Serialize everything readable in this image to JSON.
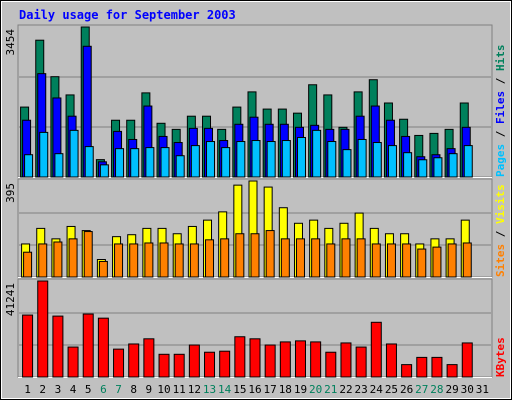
{
  "chart_data": [
    {
      "type": "bar",
      "title": "Daily usage for September 2003",
      "title_color": "#0000ff",
      "ylim": [
        0,
        3454
      ],
      "yticks": [
        3454
      ],
      "series": [
        {
          "name": "Hits",
          "color": "#00805c",
          "values": [
            1610,
            3150,
            2310,
            1890,
            3454,
            400,
            1307,
            1307,
            1937,
            1237,
            1097,
            1400,
            1400,
            1097,
            1610,
            1960,
            1564,
            1564,
            1470,
            2124,
            1890,
            1144,
            1960,
            2240,
            1704,
            1330,
            957,
            1004,
            1097,
            1704,
            null
          ]
        },
        {
          "name": "Files",
          "color": "#0000ff",
          "values": [
            1307,
            2380,
            1820,
            1400,
            3010,
            350,
            1050,
            864,
            1634,
            934,
            794,
            1120,
            1120,
            840,
            1214,
            1377,
            1214,
            1214,
            1144,
            1190,
            1097,
            1097,
            1400,
            1634,
            1307,
            934,
            467,
            513,
            653,
            1144,
            null
          ]
        },
        {
          "name": "Pages",
          "color": "#00c0ff",
          "values": [
            513,
            1027,
            537,
            1074,
            700,
            280,
            653,
            653,
            677,
            677,
            490,
            723,
            817,
            677,
            817,
            840,
            817,
            840,
            910,
            1074,
            817,
            630,
            864,
            794,
            723,
            560,
            397,
            443,
            537,
            723,
            null
          ]
        }
      ]
    },
    {
      "type": "bar",
      "ylim": [
        0,
        395
      ],
      "yticks": [
        395
      ],
      "series": [
        {
          "name": "Visits",
          "color": "#ffff00",
          "values": [
            136,
            200,
            157,
            208,
            191,
            72,
            166,
            174,
            200,
            200,
            178,
            208,
            234,
            268,
            378,
            395,
            370,
            285,
            221,
            234,
            200,
            221,
            263,
            200,
            178,
            178,
            136,
            157,
            157,
            234,
            null
          ]
        },
        {
          "name": "Sites",
          "color": "#ff8000",
          "values": [
            102,
            136,
            144,
            157,
            187,
            64,
            136,
            136,
            140,
            140,
            136,
            136,
            153,
            157,
            178,
            178,
            191,
            157,
            157,
            157,
            136,
            157,
            157,
            136,
            136,
            136,
            115,
            123,
            136,
            140,
            null
          ]
        }
      ]
    },
    {
      "type": "bar",
      "ylim": [
        0,
        41241
      ],
      "yticks": [
        41241
      ],
      "categories": [
        "1",
        "2",
        "3",
        "4",
        "5",
        "6",
        "7",
        "8",
        "9",
        "10",
        "11",
        "12",
        "13",
        "14",
        "15",
        "16",
        "17",
        "18",
        "19",
        "20",
        "21",
        "22",
        "23",
        "24",
        "25",
        "26",
        "27",
        "28",
        "29",
        "30",
        "31"
      ],
      "category_colors": [
        "#000000",
        "#000000",
        "#000000",
        "#000000",
        "#000000",
        "#00805c",
        "#00805c",
        "#000000",
        "#000000",
        "#000000",
        "#000000",
        "#000000",
        "#00805c",
        "#00805c",
        "#000000",
        "#000000",
        "#000000",
        "#000000",
        "#000000",
        "#00805c",
        "#00805c",
        "#000000",
        "#000000",
        "#000000",
        "#000000",
        "#000000",
        "#00805c",
        "#00805c",
        "#000000",
        "#000000",
        "#000000"
      ],
      "series": [
        {
          "name": "KBytes",
          "color": "#ff0000",
          "values": [
            26607,
            41241,
            26163,
            12860,
            27050,
            25276,
            11973,
            14190,
            16408,
            9756,
            9756,
            13747,
            10643,
            11086,
            17295,
            16408,
            13747,
            15077,
            15521,
            15077,
            10643,
            14634,
            12860,
            23503,
            14190,
            5321,
            8426,
            8426,
            5321,
            14634,
            null
          ]
        }
      ]
    }
  ]
}
